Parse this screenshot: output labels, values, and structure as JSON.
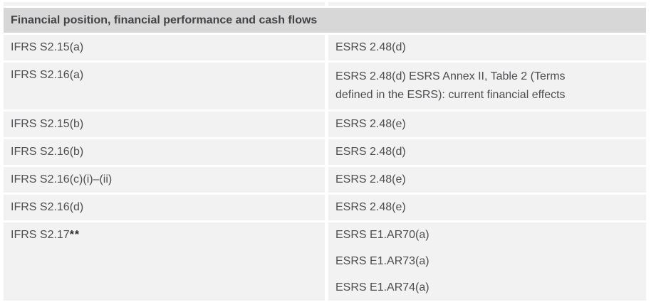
{
  "table": {
    "section_header": "Financial position, financial performance and cash flows",
    "rows": [
      {
        "ifrs": "IFRS S2.15(a)",
        "esrs": "ESRS 2.48(d)"
      },
      {
        "ifrs": "IFRS S2.16(a)",
        "esrs_lines": [
          "ESRS 2.48(d) ESRS Annex II, Table 2 (Terms",
          "defined in the ESRS): current financial effects"
        ]
      },
      {
        "ifrs": "IFRS S2.15(b)",
        "esrs": "ESRS 2.48(e)"
      },
      {
        "ifrs": "IFRS S2.16(b)",
        "esrs": "ESRS 2.48(d)"
      },
      {
        "ifrs": "IFRS S2.16(c)(i)–(ii)",
        "esrs": "ESRS 2.48(e)"
      },
      {
        "ifrs": "IFRS S2.16(d)",
        "esrs": "ESRS 2.48(e)"
      },
      {
        "ifrs": "IFRS S2.17",
        "ifrs_marker": "**",
        "esrs_lines": [
          "ESRS E1.AR70(a)",
          "ESRS E1.AR73(a)",
          "ESRS E1.AR74(a)"
        ]
      }
    ]
  },
  "colors": {
    "header_bg": "#d7d7d8",
    "row_bg": "#f2f2f3",
    "gutter": "#ffffff",
    "text": "#4e4e50",
    "header_text": "#434345",
    "marker": "#2b2b2d"
  }
}
